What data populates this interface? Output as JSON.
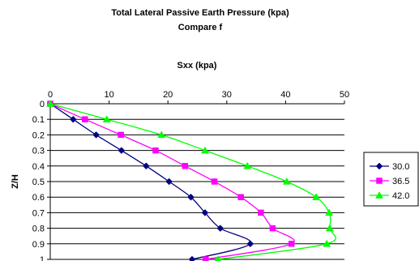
{
  "chart_data": {
    "type": "line",
    "title": "Total Lateral Passive Earth Pressure (kpa)",
    "subtitle": "Compare f",
    "xlabel": "Sxx (kpa)",
    "ylabel": "Z/H",
    "xlim": [
      0,
      50
    ],
    "ylim": [
      0,
      1
    ],
    "y_inverted": true,
    "x_axis_position": "top",
    "x_ticks": [
      0,
      10,
      20,
      30,
      40,
      50
    ],
    "y_ticks": [
      0,
      0.1,
      0.2,
      0.3,
      0.4,
      0.5,
      0.6,
      0.7,
      0.8,
      0.9,
      1
    ],
    "y_tick_labels": [
      "0",
      "0.1",
      "0.2",
      "0.3",
      "0.4",
      "0.5",
      "0.6",
      "0.7",
      "0.8",
      "0.9",
      "1"
    ],
    "grid": "horizontal",
    "legend_position": "right",
    "series": [
      {
        "name": "30.0",
        "color": "#000080",
        "marker": "diamond",
        "x": [
          0,
          3.9,
          7.8,
          12.1,
          16.3,
          20.2,
          23.9,
          26.3,
          28.9,
          34.0,
          24.1
        ],
        "y": [
          0,
          0.1,
          0.2,
          0.3,
          0.4,
          0.5,
          0.6,
          0.7,
          0.8,
          0.9,
          1.0
        ]
      },
      {
        "name": "36.5",
        "color": "#ff00ff",
        "marker": "square",
        "x": [
          0,
          5.9,
          12.0,
          17.9,
          22.9,
          27.9,
          32.4,
          35.8,
          37.8,
          41.0,
          26.4
        ],
        "y": [
          0,
          0.1,
          0.2,
          0.3,
          0.4,
          0.5,
          0.6,
          0.7,
          0.8,
          0.9,
          1.0
        ]
      },
      {
        "name": "42.0",
        "color": "#00ff00",
        "marker": "triangle",
        "x": [
          0,
          9.6,
          18.9,
          26.3,
          33.5,
          40.2,
          45.2,
          47.4,
          47.5,
          47.0,
          28.5
        ],
        "y": [
          0,
          0.1,
          0.2,
          0.3,
          0.4,
          0.5,
          0.6,
          0.7,
          0.8,
          0.9,
          1.0
        ]
      }
    ]
  }
}
